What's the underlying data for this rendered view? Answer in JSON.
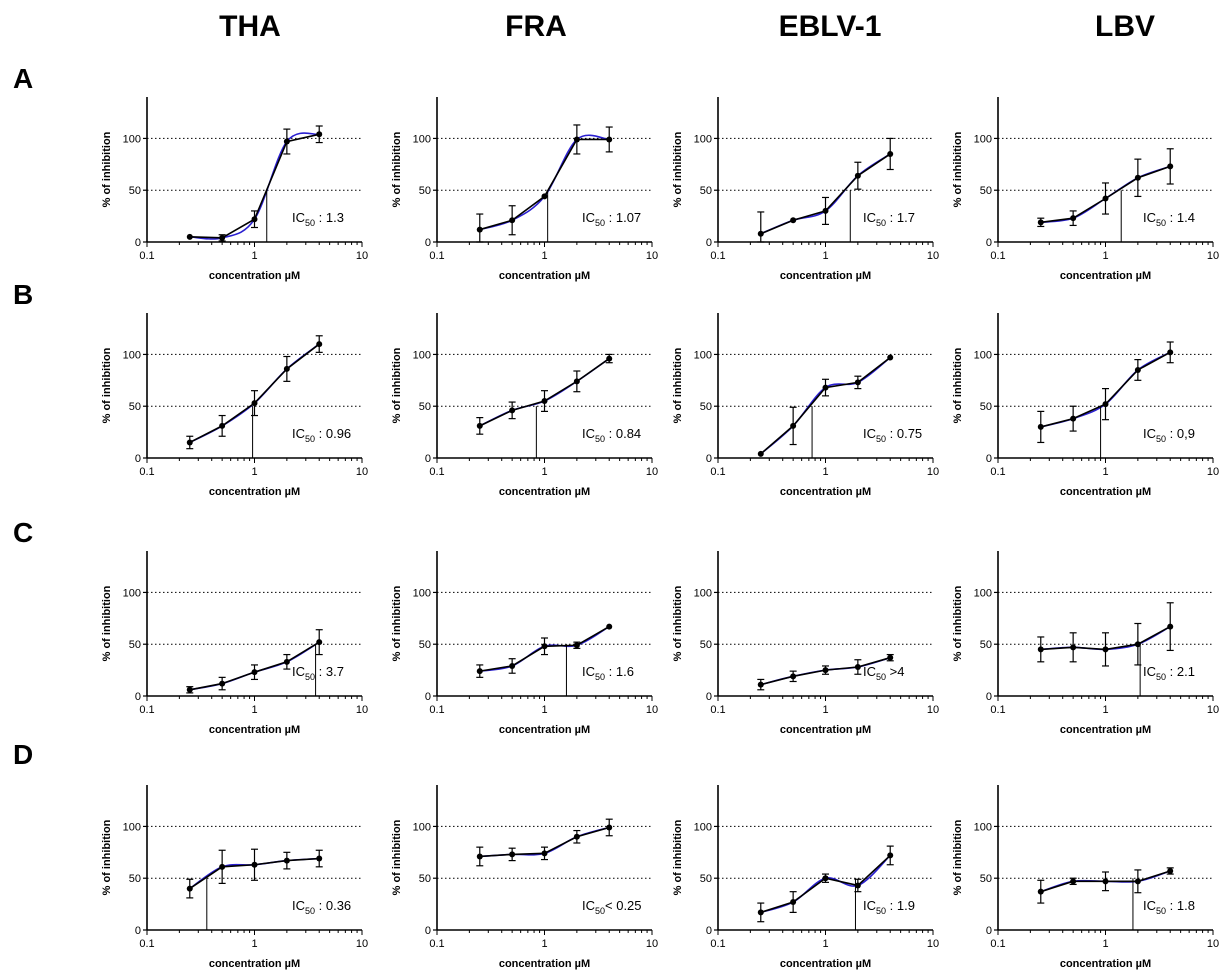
{
  "column_titles": [
    "THA",
    "FRA",
    "EBLV-1",
    "LBV"
  ],
  "row_labels": [
    "A",
    "B",
    "C",
    "D"
  ],
  "colors": {
    "data_line": "#000000",
    "fit_line": "#2a1fd0",
    "gridline": "#000000"
  },
  "chart_data": [
    {
      "type": "line",
      "row": "A",
      "column": "THA",
      "xlabel": "concentration µM",
      "ylabel": "% of inhibition",
      "xscale": "log",
      "xlim": [
        0.1,
        10
      ],
      "ylim": [
        0,
        140
      ],
      "xticks": [
        "0.1",
        "1",
        "10"
      ],
      "yticks": [
        "0",
        "50",
        "100"
      ],
      "ygrid": [
        50,
        100
      ],
      "x": [
        0.25,
        0.5,
        1,
        2,
        4
      ],
      "y": [
        5,
        4,
        22,
        97,
        104
      ],
      "err": [
        0,
        3,
        8,
        12,
        8
      ],
      "ic50": 1.3,
      "ic50_text_pre": "IC",
      "ic50_text_sub": "50",
      "ic50_text_post": " : 1.3"
    },
    {
      "type": "line",
      "row": "A",
      "column": "FRA",
      "xlabel": "concentration µM",
      "ylabel": "% of inhibition",
      "xscale": "log",
      "xlim": [
        0.1,
        10
      ],
      "ylim": [
        0,
        140
      ],
      "xticks": [
        "0.1",
        "1",
        "10"
      ],
      "yticks": [
        "0",
        "50",
        "100"
      ],
      "ygrid": [
        50,
        100
      ],
      "x": [
        0.25,
        0.5,
        1,
        2,
        4
      ],
      "y": [
        12,
        21,
        44,
        99,
        99
      ],
      "err": [
        15,
        14,
        0,
        14,
        12
      ],
      "ic50": 1.07,
      "ic50_text_pre": "IC",
      "ic50_text_sub": "50",
      "ic50_text_post": " : 1.07"
    },
    {
      "type": "line",
      "row": "A",
      "column": "EBLV-1",
      "xlabel": "concentration µM",
      "ylabel": "% of inhibition",
      "xscale": "log",
      "xlim": [
        0.1,
        10
      ],
      "ylim": [
        0,
        140
      ],
      "xticks": [
        "0.1",
        "1",
        "10"
      ],
      "yticks": [
        "0",
        "50",
        "100"
      ],
      "ygrid": [
        50,
        100
      ],
      "x": [
        0.25,
        0.5,
        1,
        2,
        4
      ],
      "y": [
        8,
        21,
        30,
        64,
        85
      ],
      "err": [
        21,
        0,
        13,
        13,
        15
      ],
      "ic50": 1.7,
      "ic50_text_pre": "IC",
      "ic50_text_sub": "50",
      "ic50_text_post": " : 1.7"
    },
    {
      "type": "line",
      "row": "A",
      "column": "LBV",
      "xlabel": "concentration µM",
      "ylabel": "% of inhibition",
      "xscale": "log",
      "xlim": [
        0.1,
        10
      ],
      "ylim": [
        0,
        140
      ],
      "xticks": [
        "0.1",
        "1",
        "10"
      ],
      "yticks": [
        "0",
        "50",
        "100"
      ],
      "ygrid": [
        50,
        100
      ],
      "x": [
        0.25,
        0.5,
        1,
        2,
        4
      ],
      "y": [
        19,
        23,
        42,
        62,
        73
      ],
      "err": [
        4,
        7,
        15,
        18,
        17
      ],
      "ic50": 1.4,
      "ic50_text_pre": "IC",
      "ic50_text_sub": "50",
      "ic50_text_post": " : 1.4"
    },
    {
      "type": "line",
      "row": "B",
      "column": "THA",
      "xlabel": "concentration µM",
      "ylabel": "% of inhibition",
      "xscale": "log",
      "xlim": [
        0.1,
        10
      ],
      "ylim": [
        0,
        140
      ],
      "xticks": [
        "0.1",
        "1",
        "10"
      ],
      "yticks": [
        "0",
        "50",
        "100"
      ],
      "ygrid": [
        50,
        100
      ],
      "x": [
        0.25,
        0.5,
        1,
        2,
        4
      ],
      "y": [
        15,
        31,
        53,
        86,
        110
      ],
      "err": [
        6,
        10,
        12,
        12,
        8
      ],
      "ic50": 0.96,
      "ic50_text_pre": "IC",
      "ic50_text_sub": "50",
      "ic50_text_post": " : 0.96"
    },
    {
      "type": "line",
      "row": "B",
      "column": "FRA",
      "xlabel": "concentration µM",
      "ylabel": "% of inhibition",
      "xscale": "log",
      "xlim": [
        0.1,
        10
      ],
      "ylim": [
        0,
        140
      ],
      "xticks": [
        "0.1",
        "1",
        "10"
      ],
      "yticks": [
        "0",
        "50",
        "100"
      ],
      "ygrid": [
        50,
        100
      ],
      "x": [
        0.25,
        0.5,
        1,
        2,
        4
      ],
      "y": [
        31,
        46,
        55,
        74,
        96
      ],
      "err": [
        8,
        8,
        10,
        10,
        4
      ],
      "ic50": 0.84,
      "ic50_text_pre": "IC",
      "ic50_text_sub": "50",
      "ic50_text_post": " : 0.84"
    },
    {
      "type": "line",
      "row": "B",
      "column": "EBLV-1",
      "xlabel": "concentration µM",
      "ylabel": "% of inhibition",
      "xscale": "log",
      "xlim": [
        0.1,
        10
      ],
      "ylim": [
        0,
        140
      ],
      "xticks": [
        "0.1",
        "1",
        "10"
      ],
      "yticks": [
        "0",
        "50",
        "100"
      ],
      "ygrid": [
        50,
        100
      ],
      "x": [
        0.25,
        0.5,
        1,
        2,
        4
      ],
      "y": [
        4,
        31,
        68,
        73,
        97
      ],
      "err": [
        0,
        18,
        8,
        6,
        0
      ],
      "ic50": 0.75,
      "ic50_text_pre": "IC",
      "ic50_text_sub": "50",
      "ic50_text_post": " : 0.75"
    },
    {
      "type": "line",
      "row": "B",
      "column": "LBV",
      "xlabel": "concentration µM",
      "ylabel": "% of inhibition",
      "xscale": "log",
      "xlim": [
        0.1,
        10
      ],
      "ylim": [
        0,
        140
      ],
      "xticks": [
        "0.1",
        "1",
        "10"
      ],
      "yticks": [
        "0",
        "50",
        "100"
      ],
      "ygrid": [
        50,
        100
      ],
      "x": [
        0.25,
        0.5,
        1,
        2,
        4
      ],
      "y": [
        30,
        38,
        52,
        85,
        102
      ],
      "err": [
        15,
        12,
        15,
        10,
        10
      ],
      "ic50": 0.9,
      "ic50_text_pre": "IC",
      "ic50_text_sub": "50",
      "ic50_text_post": " : 0,9"
    },
    {
      "type": "line",
      "row": "C",
      "column": "THA",
      "xlabel": "concentration µM",
      "ylabel": "% of inhibition",
      "xscale": "log",
      "xlim": [
        0.1,
        10
      ],
      "ylim": [
        0,
        140
      ],
      "xticks": [
        "0.1",
        "1",
        "10"
      ],
      "yticks": [
        "0",
        "50",
        "100"
      ],
      "ygrid": [
        50,
        100
      ],
      "x": [
        0.25,
        0.5,
        1,
        2,
        4
      ],
      "y": [
        6,
        12,
        23,
        33,
        52
      ],
      "err": [
        3,
        6,
        7,
        7,
        12
      ],
      "ic50": 3.7,
      "ic50_text_pre": "IC",
      "ic50_text_sub": "50",
      "ic50_text_post": " : 3.7"
    },
    {
      "type": "line",
      "row": "C",
      "column": "FRA",
      "xlabel": "concentration µM",
      "ylabel": "% of inhibition",
      "xscale": "log",
      "xlim": [
        0.1,
        10
      ],
      "ylim": [
        0,
        140
      ],
      "xticks": [
        "0.1",
        "1",
        "10"
      ],
      "yticks": [
        "0",
        "50",
        "100"
      ],
      "ygrid": [
        50,
        100
      ],
      "x": [
        0.25,
        0.5,
        1,
        2,
        4
      ],
      "y": [
        24,
        29,
        48,
        49,
        67
      ],
      "err": [
        6,
        7,
        8,
        3,
        0
      ],
      "ic50": 1.6,
      "ic50_text_pre": "IC",
      "ic50_text_sub": "50",
      "ic50_text_post": " : 1.6"
    },
    {
      "type": "line",
      "row": "C",
      "column": "EBLV-1",
      "xlabel": "concentration µM",
      "ylabel": "% of inhibition",
      "xscale": "log",
      "xlim": [
        0.1,
        10
      ],
      "ylim": [
        0,
        140
      ],
      "xticks": [
        "0.1",
        "1",
        "10"
      ],
      "yticks": [
        "0",
        "50",
        "100"
      ],
      "ygrid": [
        50,
        100
      ],
      "x": [
        0.25,
        0.5,
        1,
        2,
        4
      ],
      "y": [
        11,
        19,
        25,
        28,
        37
      ],
      "err": [
        5,
        5,
        4,
        7,
        3
      ],
      "ic50_text_pre": "IC",
      "ic50_text_sub": "50",
      "ic50_text_post": " >4"
    },
    {
      "type": "line",
      "row": "C",
      "column": "LBV",
      "xlabel": "concentration µM",
      "ylabel": "% of inhibition",
      "xscale": "log",
      "xlim": [
        0.1,
        10
      ],
      "ylim": [
        0,
        140
      ],
      "xticks": [
        "0.1",
        "1",
        "10"
      ],
      "yticks": [
        "0",
        "50",
        "100"
      ],
      "ygrid": [
        50,
        100
      ],
      "x": [
        0.25,
        0.5,
        1,
        2,
        4
      ],
      "y": [
        45,
        47,
        45,
        50,
        67
      ],
      "err": [
        12,
        14,
        16,
        20,
        23
      ],
      "ic50": 2.1,
      "ic50_text_pre": "IC",
      "ic50_text_sub": "50",
      "ic50_text_post": " : 2.1"
    },
    {
      "type": "line",
      "row": "D",
      "column": "THA",
      "xlabel": "concentration µM",
      "ylabel": "% of inhibition",
      "xscale": "log",
      "xlim": [
        0.1,
        10
      ],
      "ylim": [
        0,
        140
      ],
      "xticks": [
        "0.1",
        "1",
        "10"
      ],
      "yticks": [
        "0",
        "50",
        "100"
      ],
      "ygrid": [
        50,
        100
      ],
      "x": [
        0.25,
        0.5,
        1,
        2,
        4
      ],
      "y": [
        40,
        61,
        63,
        67,
        69
      ],
      "err": [
        9,
        16,
        15,
        8,
        8
      ],
      "ic50": 0.36,
      "ic50_text_pre": "IC",
      "ic50_text_sub": "50",
      "ic50_text_post": " : 0.36"
    },
    {
      "type": "line",
      "row": "D",
      "column": "FRA",
      "xlabel": "concentration µM",
      "ylabel": "% of inhibition",
      "xscale": "log",
      "xlim": [
        0.1,
        10
      ],
      "ylim": [
        0,
        140
      ],
      "xticks": [
        "0.1",
        "1",
        "10"
      ],
      "yticks": [
        "0",
        "50",
        "100"
      ],
      "ygrid": [
        50,
        100
      ],
      "x": [
        0.25,
        0.5,
        1,
        2,
        4
      ],
      "y": [
        71,
        73,
        74,
        90,
        99
      ],
      "err": [
        9,
        6,
        6,
        6,
        8
      ],
      "ic50_text_pre": "IC",
      "ic50_text_sub": "50",
      "ic50_text_post": "< 0.25"
    },
    {
      "type": "line",
      "row": "D",
      "column": "EBLV-1",
      "xlabel": "concentration µM",
      "ylabel": "% of inhibition",
      "xscale": "log",
      "xlim": [
        0.1,
        10
      ],
      "ylim": [
        0,
        140
      ],
      "xticks": [
        "0.1",
        "1",
        "10"
      ],
      "yticks": [
        "0",
        "50",
        "100"
      ],
      "ygrid": [
        50,
        100
      ],
      "x": [
        0.25,
        0.5,
        1,
        2,
        4
      ],
      "y": [
        17,
        27,
        50,
        43,
        72
      ],
      "err": [
        9,
        10,
        4,
        6,
        9
      ],
      "ic50": 1.9,
      "ic50_text_pre": "IC",
      "ic50_text_sub": "50",
      "ic50_text_post": " : 1.9"
    },
    {
      "type": "line",
      "row": "D",
      "column": "LBV",
      "xlabel": "concentration µM",
      "ylabel": "% of inhibition",
      "xscale": "log",
      "xlim": [
        0.1,
        10
      ],
      "ylim": [
        0,
        140
      ],
      "xticks": [
        "0.1",
        "1",
        "10"
      ],
      "yticks": [
        "0",
        "50",
        "100"
      ],
      "ygrid": [
        50,
        100
      ],
      "x": [
        0.25,
        0.5,
        1,
        2,
        4
      ],
      "y": [
        37,
        47,
        47,
        47,
        57
      ],
      "err": [
        11,
        3,
        9,
        11,
        3
      ],
      "ic50": 1.8,
      "ic50_text_pre": "IC",
      "ic50_text_sub": "50",
      "ic50_text_post": " : 1.8"
    }
  ]
}
